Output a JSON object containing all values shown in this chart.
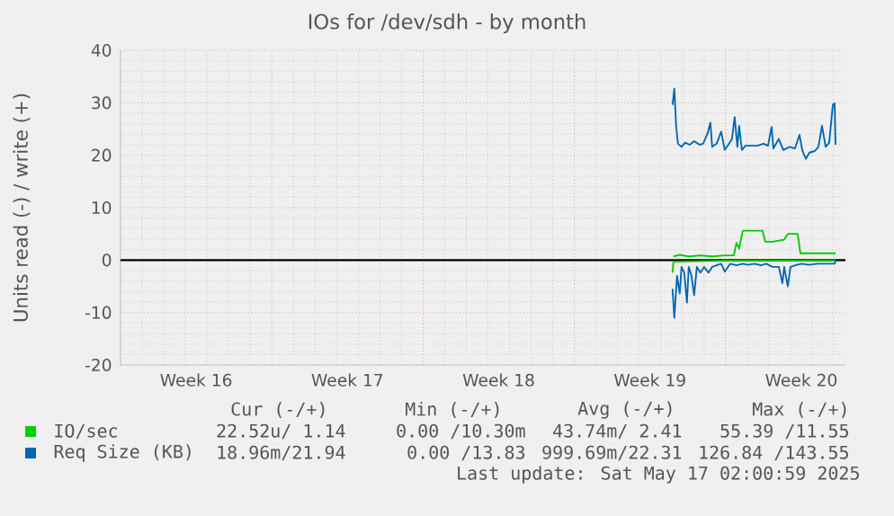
{
  "chart_data": {
    "type": "line",
    "title": "IOs for /dev/sdh - by month",
    "ylabel": "Units read (-) / write (+)",
    "xlim": [
      "2025-04-14T00:00",
      "2025-05-17T13:00"
    ],
    "ylim": [
      -20,
      40
    ],
    "xticks": [
      {
        "value": "2025-04-14T00:00",
        "label": null
      },
      {
        "value": "2025-04-17T12:00",
        "label": "Week 16"
      },
      {
        "value": "2025-04-21T00:00",
        "label": null
      },
      {
        "value": "2025-04-24T12:00",
        "label": "Week 17"
      },
      {
        "value": "2025-04-28T00:00",
        "label": null
      },
      {
        "value": "2025-05-01T12:00",
        "label": "Week 18"
      },
      {
        "value": "2025-05-05T00:00",
        "label": null
      },
      {
        "value": "2025-05-08T12:00",
        "label": "Week 19"
      },
      {
        "value": "2025-05-12T00:00",
        "label": null
      },
      {
        "value": "2025-05-15T12:00",
        "label": "Week 20"
      }
    ],
    "yticks": [
      -20,
      -10,
      0,
      10,
      20,
      30,
      40
    ],
    "grid": true,
    "legend": "bottom left",
    "marker": "none",
    "line_style": "solid",
    "ref_lines": [
      {
        "axis": "y",
        "value": 0,
        "color": "#000000"
      }
    ],
    "series": [
      {
        "color": "#00cc00",
        "x": [
          "2025-05-09T13:00",
          "2025-05-09T14:00",
          "2025-05-12T00:00",
          "2025-05-17T02:00"
        ],
        "values": [
          -2.4,
          -0.3,
          -0.1,
          -0.1
        ]
      },
      {
        "name": "IO/sec",
        "color": "#00cc00",
        "x": [
          "2025-05-09T14:00",
          "2025-05-09T21:00",
          "2025-05-10T07:00",
          "2025-05-10T20:00",
          "2025-05-11T09:00",
          "2025-05-11T23:00",
          "2025-05-12T09:00",
          "2025-05-12T12:00",
          "2025-05-12T15:00",
          "2025-05-12T19:00",
          "2025-05-13T05:00",
          "2025-05-13T17:00",
          "2025-05-13T20:00",
          "2025-05-14T04:00",
          "2025-05-14T17:00",
          "2025-05-14T21:00",
          "2025-05-15T08:00",
          "2025-05-15T11:00",
          "2025-05-16T09:00",
          "2025-05-17T02:00"
        ],
        "values": [
          0.7,
          1.0,
          0.7,
          0.9,
          0.7,
          0.9,
          0.9,
          3.3,
          2.2,
          5.6,
          5.6,
          5.6,
          3.5,
          3.5,
          3.9,
          5.0,
          5.0,
          1.3,
          1.3,
          1.3
        ]
      },
      {
        "color": "#0066b3",
        "x": [
          "2025-05-09T13:00",
          "2025-05-09T15:00",
          "2025-05-09T18:00",
          "2025-05-09T21:00",
          "2025-05-09T23:00",
          "2025-05-10T02:00",
          "2025-05-10T05:00",
          "2025-05-10T07:00",
          "2025-05-10T10:00",
          "2025-05-10T13:00",
          "2025-05-10T16:00",
          "2025-05-10T20:00",
          "2025-05-11T00:00",
          "2025-05-11T05:00",
          "2025-05-11T09:00",
          "2025-05-11T14:00",
          "2025-05-11T19:00",
          "2025-05-11T23:00",
          "2025-05-12T05:00",
          "2025-05-12T12:00",
          "2025-05-12T19:00",
          "2025-05-13T01:00",
          "2025-05-13T08:00",
          "2025-05-13T15:00",
          "2025-05-13T21:00",
          "2025-05-14T04:00",
          "2025-05-14T11:00",
          "2025-05-14T15:00",
          "2025-05-14T17:00",
          "2025-05-14T21:00",
          "2025-05-15T00:00",
          "2025-05-15T07:00",
          "2025-05-15T13:00",
          "2025-05-15T20:00",
          "2025-05-16T06:00",
          "2025-05-16T16:00",
          "2025-05-17T01:00",
          "2025-05-17T02:00"
        ],
        "values": [
          -5.5,
          -11.0,
          -3.0,
          -6.4,
          -1.3,
          -2.4,
          -8.1,
          -1.3,
          -3.0,
          -6.7,
          -1.3,
          -2.4,
          -1.3,
          -2.4,
          -1.3,
          -1.0,
          -0.7,
          -2.2,
          -0.7,
          -1.0,
          -0.7,
          -0.9,
          -0.7,
          -1.0,
          -0.7,
          -1.3,
          -1.3,
          -4.4,
          -1.3,
          -5.0,
          -1.3,
          -0.9,
          -0.7,
          -0.9,
          -0.7,
          -0.7,
          -0.7,
          -0.2
        ]
      },
      {
        "name": "Req Size (KB)",
        "color": "#0066b3",
        "x": [
          "2025-05-09T13:00",
          "2025-05-09T15:00",
          "2025-05-09T17:00",
          "2025-05-09T19:00",
          "2025-05-09T23:00",
          "2025-05-10T03:00",
          "2025-05-10T08:00",
          "2025-05-10T13:00",
          "2025-05-10T19:00",
          "2025-05-10T23:00",
          "2025-05-11T04:00",
          "2025-05-11T07:00",
          "2025-05-11T09:00",
          "2025-05-11T14:00",
          "2025-05-11T19:00",
          "2025-05-11T23:00",
          "2025-05-12T03:00",
          "2025-05-12T07:00",
          "2025-05-12T10:00",
          "2025-05-12T13:00",
          "2025-05-12T15:00",
          "2025-05-12T18:00",
          "2025-05-12T22:00",
          "2025-05-13T05:00",
          "2025-05-13T11:00",
          "2025-05-13T18:00",
          "2025-05-13T23:00",
          "2025-05-14T03:00",
          "2025-05-14T05:00",
          "2025-05-14T11:00",
          "2025-05-14T16:00",
          "2025-05-14T23:00",
          "2025-05-15T05:00",
          "2025-05-15T10:00",
          "2025-05-15T13:00",
          "2025-05-15T17:00",
          "2025-05-15T21:00",
          "2025-05-16T03:00",
          "2025-05-16T07:00",
          "2025-05-16T11:00",
          "2025-05-16T15:00",
          "2025-05-16T19:00",
          "2025-05-16T23:00",
          "2025-05-17T01:00",
          "2025-05-17T02:00"
        ],
        "values": [
          29.6,
          32.7,
          25.6,
          22.2,
          21.6,
          22.4,
          22.0,
          22.7,
          22.0,
          22.2,
          24.2,
          26.2,
          21.6,
          22.2,
          24.5,
          21.0,
          22.0,
          23.1,
          27.3,
          21.6,
          25.6,
          21.0,
          21.8,
          21.8,
          21.8,
          22.2,
          21.8,
          25.4,
          21.3,
          23.1,
          21.0,
          21.6,
          21.3,
          23.9,
          21.0,
          19.3,
          20.5,
          20.8,
          21.6,
          25.6,
          21.6,
          22.4,
          29.6,
          29.9,
          22.0
        ]
      }
    ],
    "annotations": [
      "Cur (-/+)",
      "Min (-/+)",
      "Avg (-/+)",
      "Max (-/+)",
      "22.52u/ 1.14",
      "0.00 /10.30m",
      "43.74m/ 2.41",
      "55.39 /11.55",
      "18.96m/21.94",
      "0.00 /13.83",
      "999.69m/22.31",
      "126.84 /143.55",
      "Last update: Sat May 17 02:00:59 2025"
    ]
  }
}
